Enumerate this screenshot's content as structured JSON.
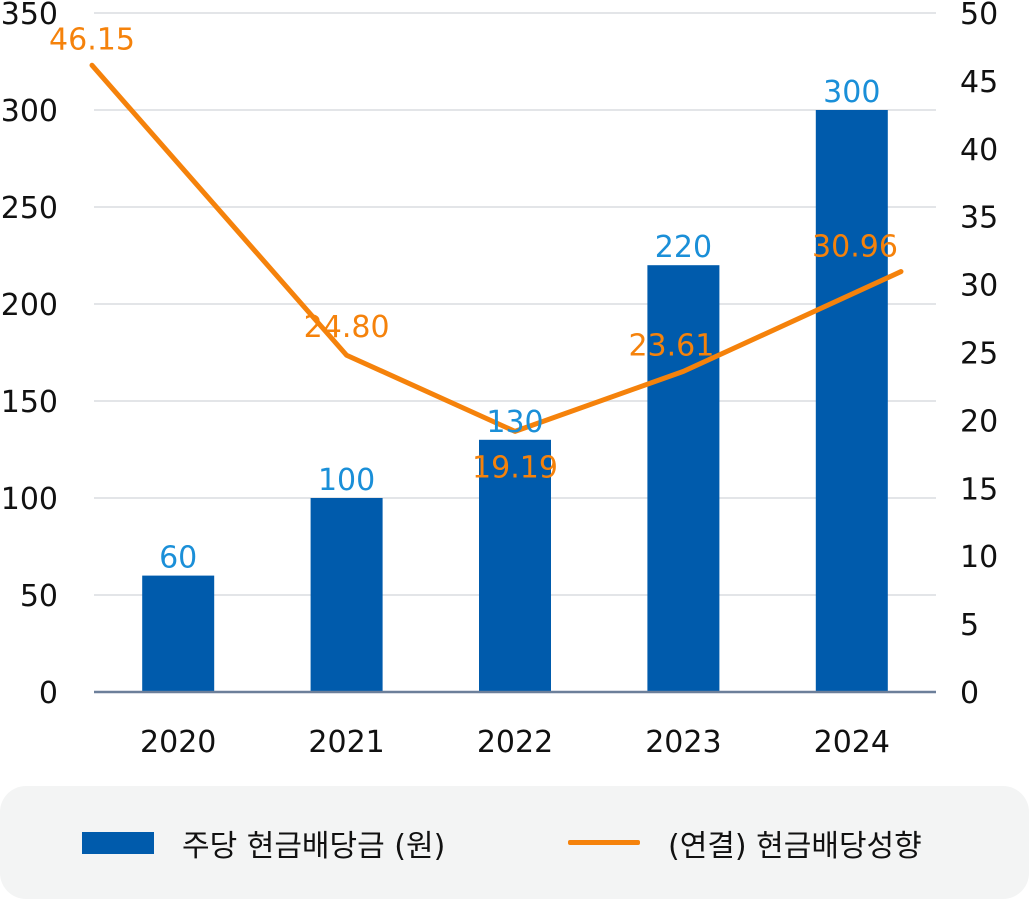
{
  "chart_data": {
    "type": "bar",
    "categories": [
      "2020",
      "2021",
      "2022",
      "2023",
      "2024"
    ],
    "series": [
      {
        "name": "주당 현금배당금 (원)",
        "type": "bar",
        "axis": "left",
        "values": [
          60,
          100,
          130,
          220,
          300
        ],
        "value_labels": [
          "60",
          "100",
          "130",
          "220",
          "300"
        ]
      },
      {
        "name": "(연결) 현금배당성향",
        "type": "line",
        "axis": "right",
        "values": [
          46.15,
          24.8,
          19.19,
          23.61,
          30.96
        ],
        "value_labels": [
          "46.15",
          "24.80",
          "19.19",
          "23.61",
          "30.96"
        ]
      }
    ],
    "left_axis": {
      "min": 0,
      "max": 350,
      "ticks": [
        "0",
        "50",
        "100",
        "150",
        "200",
        "250",
        "300",
        "350"
      ]
    },
    "right_axis": {
      "min": 0,
      "max": 50,
      "ticks": [
        "0",
        "5",
        "10",
        "15",
        "20",
        "25",
        "30",
        "35",
        "40",
        "45",
        "50"
      ]
    },
    "grid": true,
    "legend_position": "bottom"
  },
  "colors": {
    "bar": "#005bac",
    "bar_label": "#1a8fd8",
    "line": "#f5820b",
    "grid": "#e3e5e8",
    "axis": "#6c7f9a",
    "text": "#111111"
  },
  "legend": {
    "bar_label": "주당 현금배당금 (원)",
    "line_label": "(연결) 현금배당성향"
  }
}
